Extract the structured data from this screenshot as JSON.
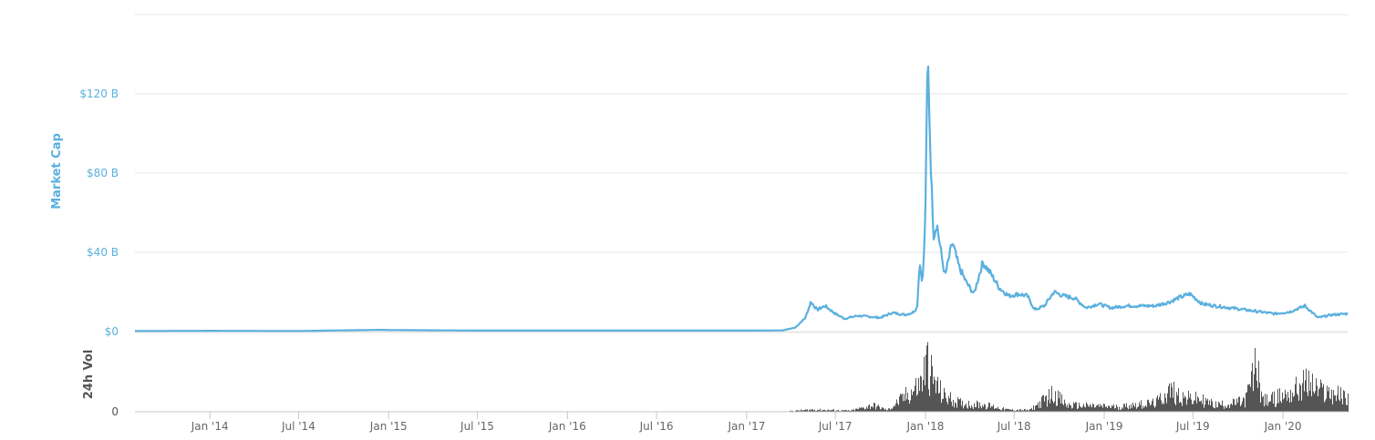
{
  "chart_data": {
    "type": "line",
    "ylabel": "Market Cap",
    "y_tick_labels": [
      "$0",
      "$40 B",
      "$80 B",
      "$120 B"
    ],
    "y_ticks": [
      0,
      40,
      80,
      120
    ],
    "ylim": [
      0,
      160
    ],
    "x_tick_labels": [
      "Jan '14",
      "Jul '14",
      "Jan '15",
      "Jul '15",
      "Jan '16",
      "Jul '16",
      "Jan '17",
      "Jul '17",
      "Jan '18",
      "Jul '18",
      "Jan '19",
      "Jul '19",
      "Jan '20"
    ],
    "x_ticks": [
      "2014-01-01",
      "2014-07-01",
      "2015-01-01",
      "2015-07-01",
      "2016-01-01",
      "2016-07-01",
      "2017-01-01",
      "2017-07-01",
      "2018-01-01",
      "2018-07-01",
      "2019-01-01",
      "2019-07-01",
      "2020-01-01"
    ],
    "xlim": [
      "2013-08-01",
      "2020-05-12"
    ],
    "grid": true,
    "legend": "none",
    "colors": {
      "market_cap": "#5ab0de",
      "volume": "#555555",
      "grid": "#e6e6e6"
    },
    "series": [
      {
        "unit": "B",
        "points": [
          [
            "2013-08-01",
            0.3
          ],
          [
            "2014-01-01",
            0.4
          ],
          [
            "2014-07-01",
            0.3
          ],
          [
            "2014-12-20",
            0.9
          ],
          [
            "2015-01-01",
            0.8
          ],
          [
            "2015-07-01",
            0.5
          ],
          [
            "2016-01-01",
            0.5
          ],
          [
            "2016-07-01",
            0.5
          ],
          [
            "2017-01-01",
            0.5
          ],
          [
            "2017-03-15",
            0.6
          ],
          [
            "2017-04-10",
            2.0
          ],
          [
            "2017-05-01",
            7.0
          ],
          [
            "2017-05-12",
            15.0
          ],
          [
            "2017-05-25",
            11.0
          ],
          [
            "2017-06-10",
            13.0
          ],
          [
            "2017-07-01",
            9.0
          ],
          [
            "2017-07-20",
            6.5
          ],
          [
            "2017-08-15",
            8.0
          ],
          [
            "2017-09-10",
            7.5
          ],
          [
            "2017-10-01",
            7.0
          ],
          [
            "2017-10-25",
            9.5
          ],
          [
            "2017-11-20",
            8.5
          ],
          [
            "2017-12-05",
            9.5
          ],
          [
            "2017-12-15",
            12.0
          ],
          [
            "2017-12-20",
            35.0
          ],
          [
            "2017-12-26",
            25.0
          ],
          [
            "2017-12-31",
            50.0
          ],
          [
            "2018-01-03",
            95.0
          ],
          [
            "2018-01-05",
            130.0
          ],
          [
            "2018-01-07",
            132.0
          ],
          [
            "2018-01-10",
            100.0
          ],
          [
            "2018-01-14",
            70.0
          ],
          [
            "2018-01-18",
            48.0
          ],
          [
            "2018-01-24",
            55.0
          ],
          [
            "2018-02-03",
            38.0
          ],
          [
            "2018-02-10",
            28.0
          ],
          [
            "2018-02-25",
            45.0
          ],
          [
            "2018-03-10",
            33.0
          ],
          [
            "2018-03-25",
            25.0
          ],
          [
            "2018-04-10",
            19.0
          ],
          [
            "2018-04-28",
            35.0
          ],
          [
            "2018-05-15",
            29.0
          ],
          [
            "2018-06-01",
            22.0
          ],
          [
            "2018-06-20",
            18.0
          ],
          [
            "2018-07-10",
            19.0
          ],
          [
            "2018-07-28",
            18.0
          ],
          [
            "2018-08-12",
            11.0
          ],
          [
            "2018-09-01",
            13.0
          ],
          [
            "2018-09-20",
            20.0
          ],
          [
            "2018-10-10",
            18.0
          ],
          [
            "2018-11-01",
            17.0
          ],
          [
            "2018-11-25",
            12.0
          ],
          [
            "2018-12-20",
            14.0
          ],
          [
            "2019-01-15",
            12.0
          ],
          [
            "2019-02-15",
            13.0
          ],
          [
            "2019-03-15",
            13.0
          ],
          [
            "2019-04-15",
            13.0
          ],
          [
            "2019-05-15",
            15.0
          ],
          [
            "2019-06-01",
            17.0
          ],
          [
            "2019-06-25",
            19.0
          ],
          [
            "2019-07-20",
            14.0
          ],
          [
            "2019-08-15",
            13.0
          ],
          [
            "2019-09-15",
            12.0
          ],
          [
            "2019-10-15",
            11.0
          ],
          [
            "2019-11-15",
            10.0
          ],
          [
            "2019-12-15",
            9.0
          ],
          [
            "2020-01-15",
            10.0
          ],
          [
            "2020-02-15",
            13.0
          ],
          [
            "2020-03-12",
            7.0
          ],
          [
            "2020-04-10",
            8.5
          ],
          [
            "2020-05-12",
            9.0
          ]
        ]
      },
      {
        "name": "24h Vol",
        "ylim": [
          0,
          10
        ],
        "y_tick_labels": [
          "0"
        ],
        "y_ticks": [
          0
        ],
        "points": [
          [
            "2013-08-01",
            0.0
          ],
          [
            "2017-03-15",
            0.05
          ],
          [
            "2017-05-15",
            0.4
          ],
          [
            "2017-08-01",
            0.2
          ],
          [
            "2017-09-15",
            1.2
          ],
          [
            "2017-10-15",
            0.3
          ],
          [
            "2017-12-20",
            5.0
          ],
          [
            "2018-01-05",
            9.5
          ],
          [
            "2018-01-15",
            6.0
          ],
          [
            "2018-02-05",
            3.0
          ],
          [
            "2018-03-15",
            1.5
          ],
          [
            "2018-05-01",
            1.3
          ],
          [
            "2018-06-15",
            0.4
          ],
          [
            "2018-08-01",
            0.3
          ],
          [
            "2018-09-20",
            3.5
          ],
          [
            "2018-10-15",
            1.2
          ],
          [
            "2018-12-01",
            1.1
          ],
          [
            "2019-02-01",
            0.9
          ],
          [
            "2019-03-01",
            1.3
          ],
          [
            "2019-04-15",
            1.6
          ],
          [
            "2019-05-15",
            4.0
          ],
          [
            "2019-06-15",
            2.5
          ],
          [
            "2019-07-15",
            2.3
          ],
          [
            "2019-08-15",
            1.3
          ],
          [
            "2019-09-15",
            1.5
          ],
          [
            "2019-10-15",
            2.0
          ],
          [
            "2019-11-08",
            9.0
          ],
          [
            "2019-11-20",
            2.0
          ],
          [
            "2019-12-15",
            2.5
          ],
          [
            "2020-01-15",
            3.5
          ],
          [
            "2020-02-20",
            5.5
          ],
          [
            "2020-03-12",
            4.0
          ],
          [
            "2020-04-10",
            3.5
          ],
          [
            "2020-05-12",
            2.5
          ]
        ]
      }
    ]
  }
}
